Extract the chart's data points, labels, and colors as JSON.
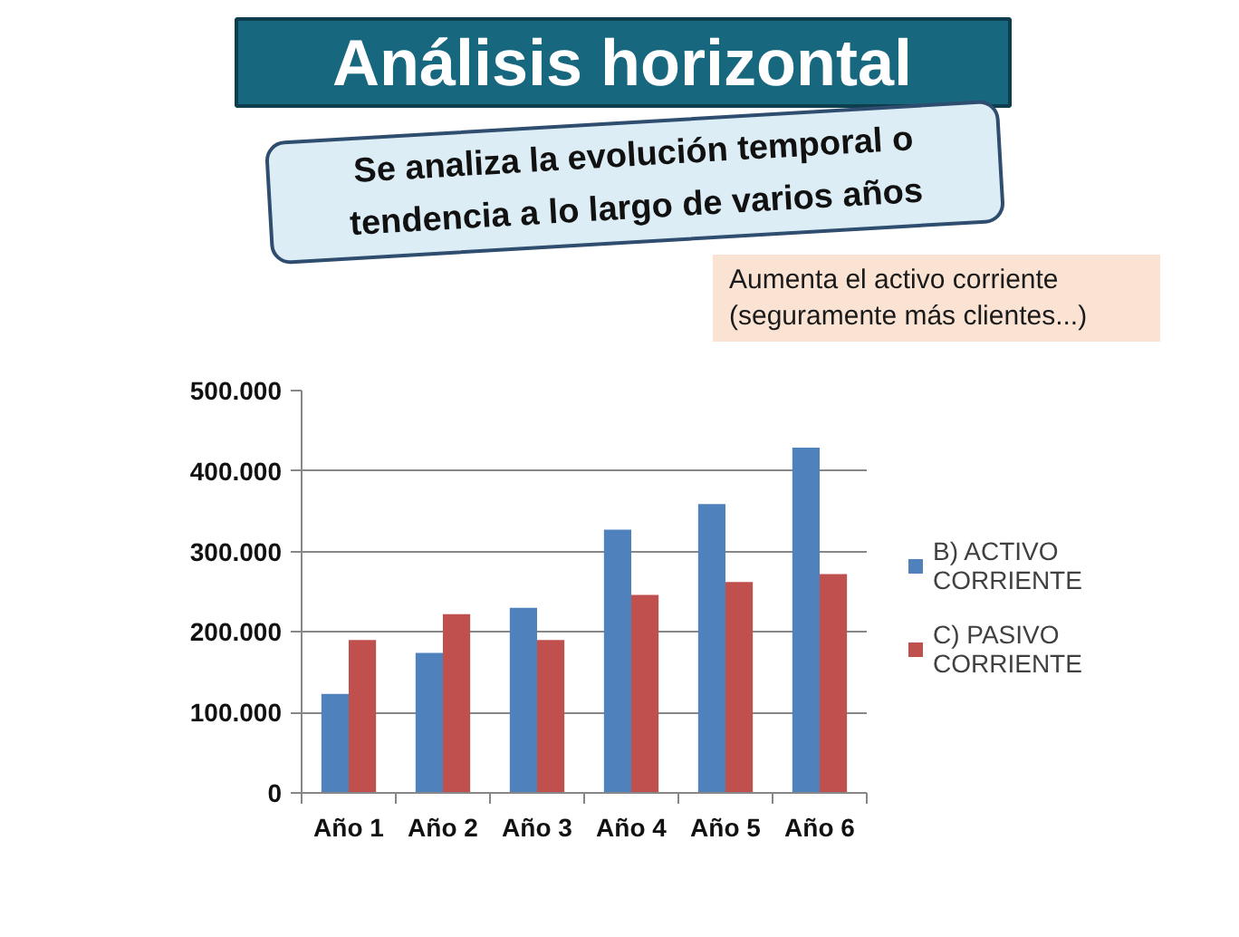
{
  "chart_data": {
    "type": "bar",
    "title": "Análisis horizontal",
    "subtitle": "Se analiza la evolución temporal o tendencia a lo largo de varios años",
    "annotations": [
      "Aumenta el activo corriente (seguramente más clientes...)"
    ],
    "categories": [
      "Año 1",
      "Año 2",
      "Año 3",
      "Año 4",
      "Año 5",
      "Año 6"
    ],
    "series": [
      {
        "name": "B) ACTIVO CORRIENTE",
        "color": "#4f81bd",
        "values": [
          123000,
          174000,
          230000,
          327000,
          359000,
          429000
        ]
      },
      {
        "name": "C) PASIVO CORRIENTE",
        "color": "#c0504d",
        "values": [
          190000,
          222000,
          190000,
          246000,
          262000,
          272000
        ]
      }
    ],
    "ylim": [
      0,
      500000
    ],
    "yticks": [
      0,
      {
        "value": 100000,
        "label": "100.000"
      },
      {
        "value": 200000,
        "label": "200.000"
      },
      {
        "value": 300000,
        "label": "300.000"
      },
      {
        "value": 400000,
        "label": "400.000"
      },
      {
        "value": 500000,
        "label": "500.000"
      }
    ],
    "grid": "y",
    "legend": "right"
  }
}
